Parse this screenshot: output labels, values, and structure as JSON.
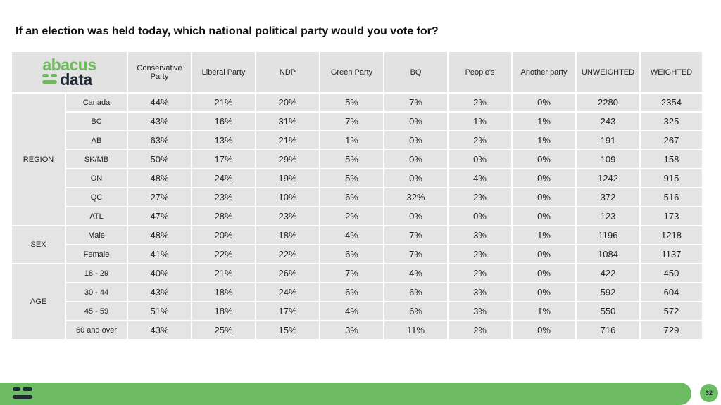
{
  "title": "If an election was held today, which national political party would you vote for?",
  "logo": {
    "line1": "abacus",
    "line2": "data"
  },
  "page_number": "32",
  "colors": {
    "accent_green": "#6dbb63",
    "logo_green": "#6fba5e",
    "dark_navy": "#1f2a36",
    "cell_gray": "#e4e4e4"
  },
  "chart_data": {
    "type": "table",
    "columns": [
      "Conservative Party",
      "Liberal Party",
      "NDP",
      "Green Party",
      "BQ",
      "People's",
      "Another party",
      "UNWEIGHTED",
      "WEIGHTED"
    ],
    "groups": [
      {
        "name": "REGION",
        "rows": [
          {
            "label": "Canada",
            "values": [
              "44%",
              "21%",
              "20%",
              "5%",
              "7%",
              "2%",
              "0%",
              "2280",
              "2354"
            ]
          },
          {
            "label": "BC",
            "values": [
              "43%",
              "16%",
              "31%",
              "7%",
              "0%",
              "1%",
              "1%",
              "243",
              "325"
            ]
          },
          {
            "label": "AB",
            "values": [
              "63%",
              "13%",
              "21%",
              "1%",
              "0%",
              "2%",
              "1%",
              "191",
              "267"
            ]
          },
          {
            "label": "SK/MB",
            "values": [
              "50%",
              "17%",
              "29%",
              "5%",
              "0%",
              "0%",
              "0%",
              "109",
              "158"
            ]
          },
          {
            "label": "ON",
            "values": [
              "48%",
              "24%",
              "19%",
              "5%",
              "0%",
              "4%",
              "0%",
              "1242",
              "915"
            ]
          },
          {
            "label": "QC",
            "values": [
              "27%",
              "23%",
              "10%",
              "6%",
              "32%",
              "2%",
              "0%",
              "372",
              "516"
            ]
          },
          {
            "label": "ATL",
            "values": [
              "47%",
              "28%",
              "23%",
              "2%",
              "0%",
              "0%",
              "0%",
              "123",
              "173"
            ]
          }
        ]
      },
      {
        "name": "SEX",
        "rows": [
          {
            "label": "Male",
            "values": [
              "48%",
              "20%",
              "18%",
              "4%",
              "7%",
              "3%",
              "1%",
              "1196",
              "1218"
            ]
          },
          {
            "label": "Female",
            "values": [
              "41%",
              "22%",
              "22%",
              "6%",
              "7%",
              "2%",
              "0%",
              "1084",
              "1137"
            ]
          }
        ]
      },
      {
        "name": "AGE",
        "rows": [
          {
            "label": "18 - 29",
            "values": [
              "40%",
              "21%",
              "26%",
              "7%",
              "4%",
              "2%",
              "0%",
              "422",
              "450"
            ]
          },
          {
            "label": "30 - 44",
            "values": [
              "43%",
              "18%",
              "24%",
              "6%",
              "6%",
              "3%",
              "0%",
              "592",
              "604"
            ]
          },
          {
            "label": "45 - 59",
            "values": [
              "51%",
              "18%",
              "17%",
              "4%",
              "6%",
              "3%",
              "1%",
              "550",
              "572"
            ]
          },
          {
            "label": "60 and over",
            "values": [
              "43%",
              "25%",
              "15%",
              "3%",
              "11%",
              "2%",
              "0%",
              "716",
              "729"
            ]
          }
        ]
      }
    ]
  }
}
